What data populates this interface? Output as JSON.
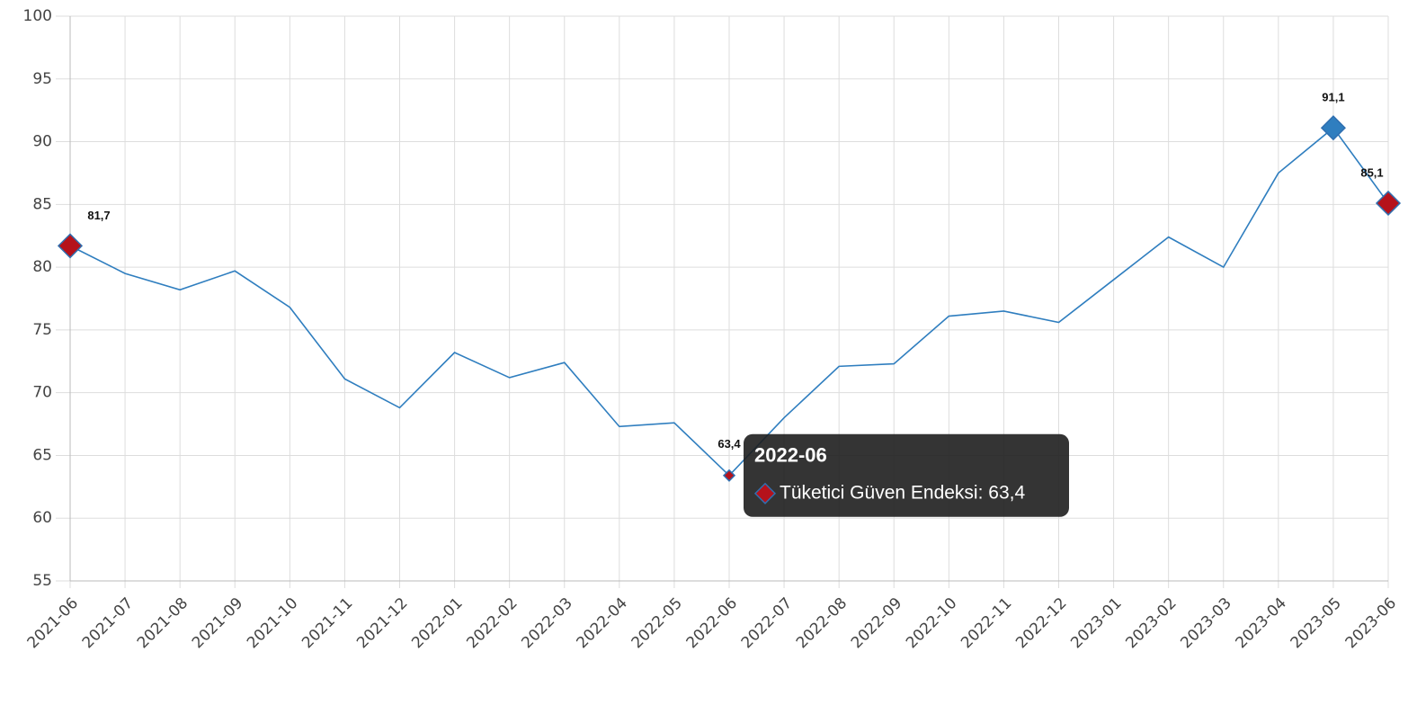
{
  "chart_data": {
    "type": "line",
    "categories": [
      "2021-06",
      "2021-07",
      "2021-08",
      "2021-09",
      "2021-10",
      "2021-11",
      "2021-12",
      "2022-01",
      "2022-02",
      "2022-03",
      "2022-04",
      "2022-05",
      "2022-06",
      "2022-07",
      "2022-08",
      "2022-09",
      "2022-10",
      "2022-11",
      "2022-12",
      "2023-01",
      "2023-02",
      "2023-03",
      "2023-04",
      "2023-05",
      "2023-06"
    ],
    "values": [
      81.7,
      79.5,
      78.2,
      79.7,
      76.8,
      71.1,
      68.8,
      73.2,
      71.2,
      72.4,
      67.3,
      67.6,
      63.4,
      68.0,
      72.1,
      72.3,
      76.1,
      76.5,
      75.6,
      79.0,
      82.4,
      80.0,
      87.5,
      91.1,
      85.1
    ],
    "value_labels": [
      "81,7",
      null,
      null,
      null,
      null,
      null,
      null,
      null,
      null,
      null,
      null,
      null,
      "63,4",
      null,
      null,
      null,
      null,
      null,
      null,
      null,
      null,
      null,
      null,
      "91,1",
      "85,1"
    ],
    "point_colors": [
      "#b5121b",
      null,
      null,
      null,
      null,
      null,
      null,
      null,
      null,
      null,
      null,
      null,
      "#b5121b",
      null,
      null,
      null,
      null,
      null,
      null,
      null,
      null,
      null,
      null,
      "#2f7ebf",
      "#b5121b"
    ],
    "color": "#2f7ebf",
    "ylim": [
      55,
      100
    ],
    "yticks": [
      55,
      60,
      65,
      70,
      75,
      80,
      85,
      90,
      95,
      100
    ],
    "grid": true,
    "tooltip": {
      "title": "2022-06",
      "text": "Tüketici Güven Endeksi: 63,4"
    }
  }
}
